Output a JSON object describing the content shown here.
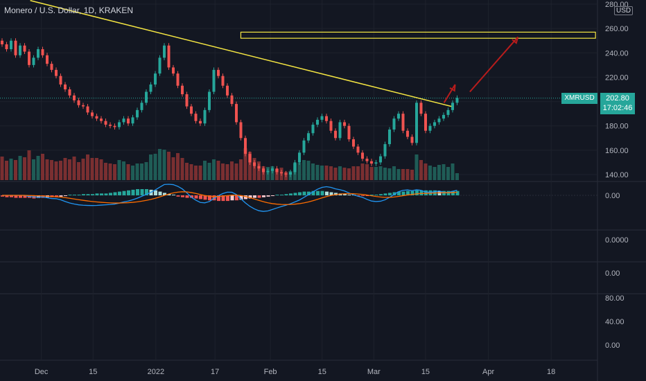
{
  "header": {
    "title": "Monero / U.S. Dollar, 1D, KRAKEN",
    "currency": "USD",
    "symbol": "XMRUSD",
    "last_price": "202.80",
    "countdown": "17:02:46"
  },
  "chart_data": {
    "type": "candlestick",
    "price_axis": {
      "ticks": [
        "140.00",
        "160.00",
        "180.00",
        "200.00",
        "220.00",
        "240.00",
        "260.00",
        "280.00"
      ],
      "ylim": [
        134,
        283
      ]
    },
    "time_axis": {
      "labels": [
        "Dec",
        "15",
        "2022",
        "17",
        "Feb",
        "15",
        "Mar",
        "15",
        "Apr",
        "18"
      ]
    },
    "indicator_axes": [
      {
        "name": "macd",
        "ticks": [
          "0.00"
        ]
      },
      {
        "name": "pane2",
        "ticks": [
          "0.0000"
        ]
      },
      {
        "name": "pane3",
        "ticks": [
          "0.00"
        ]
      },
      {
        "name": "pane4",
        "ticks": [
          "80.00",
          "40.00",
          "0.00"
        ]
      }
    ],
    "close": [
      247,
      243,
      250,
      238,
      246,
      241,
      230,
      236,
      243,
      238,
      231,
      226,
      221,
      214,
      210,
      205,
      201,
      197,
      196,
      191,
      188,
      186,
      184,
      181,
      180,
      179,
      183,
      186,
      182,
      187,
      193,
      199,
      208,
      214,
      223,
      236,
      246,
      228,
      223,
      213,
      206,
      196,
      190,
      184,
      182,
      193,
      208,
      226,
      221,
      213,
      205,
      198,
      183,
      170,
      157,
      150,
      147,
      145,
      142,
      143,
      145,
      142,
      141,
      140,
      142,
      150,
      158,
      168,
      174,
      181,
      185,
      188,
      184,
      176,
      170,
      183,
      180,
      169,
      163,
      158,
      153,
      151,
      149,
      150,
      155,
      165,
      177,
      186,
      190,
      176,
      171,
      166,
      199,
      190,
      176,
      180,
      183,
      186,
      189,
      193,
      199,
      203
    ],
    "volume": [
      34,
      28,
      31,
      29,
      35,
      33,
      43,
      30,
      35,
      38,
      30,
      29,
      27,
      28,
      32,
      30,
      34,
      26,
      31,
      37,
      32,
      32,
      30,
      25,
      24,
      23,
      29,
      27,
      23,
      21,
      24,
      24,
      26,
      37,
      38,
      45,
      44,
      41,
      33,
      39,
      32,
      25,
      23,
      21,
      21,
      28,
      25,
      30,
      28,
      24,
      23,
      27,
      24,
      30,
      46,
      41,
      32,
      27,
      20,
      19,
      20,
      16,
      18,
      12,
      13,
      24,
      25,
      29,
      28,
      24,
      22,
      21,
      21,
      20,
      18,
      20,
      18,
      17,
      20,
      20,
      24,
      23,
      19,
      19,
      20,
      18,
      17,
      20,
      16,
      16,
      16,
      15,
      37,
      29,
      24,
      21,
      19,
      22,
      23,
      19,
      24,
      10
    ],
    "macd_histogram": [
      -2,
      -3,
      -3,
      -4,
      -4,
      -4,
      -4,
      -5,
      -4,
      -4,
      -3,
      -3,
      -3,
      -2,
      -1,
      0,
      1,
      1,
      2,
      2,
      2,
      3,
      3,
      3,
      4,
      5,
      6,
      7,
      8,
      9,
      10,
      10,
      10,
      9,
      8,
      6,
      4,
      2,
      0,
      -2,
      -3,
      -4,
      -4,
      -5,
      -6,
      -7,
      -8,
      -8,
      -9,
      -9,
      -9,
      -8,
      -8,
      -7,
      -6,
      -5,
      -4,
      -4,
      -3,
      -2,
      -1,
      0,
      1,
      2,
      3,
      4,
      5,
      6,
      6,
      7,
      7,
      7,
      6,
      5,
      4,
      3,
      2,
      1,
      0,
      -1,
      -1,
      -1,
      0,
      1,
      2,
      3,
      4,
      5,
      6,
      6,
      7,
      7,
      8,
      8,
      8,
      8,
      8,
      7,
      7,
      7,
      7,
      7
    ],
    "trendline": {
      "from": {
        "date": "2021-11-28",
        "price": 283
      },
      "to": {
        "date": "2022-03-22",
        "price": 196
      }
    },
    "resistance_zone": {
      "from": "2022-01-24",
      "to": "2022-04-30",
      "price_low": 252,
      "price_high": 257
    },
    "projection_arrows": [
      {
        "from": {
          "date": "2022-03-20",
          "price": 199
        },
        "to": {
          "date": "2022-03-23",
          "price": 214
        }
      },
      {
        "from": {
          "date": "2022-03-27",
          "price": 208
        },
        "to": {
          "date": "2022-04-09",
          "price": 253
        }
      }
    ],
    "colors": {
      "up": "#26a69a",
      "down": "#ef5350",
      "trendline": "#f5e642",
      "arrow": "#b71c1c",
      "macd": "#2196f3",
      "signal": "#ff6d00"
    }
  }
}
